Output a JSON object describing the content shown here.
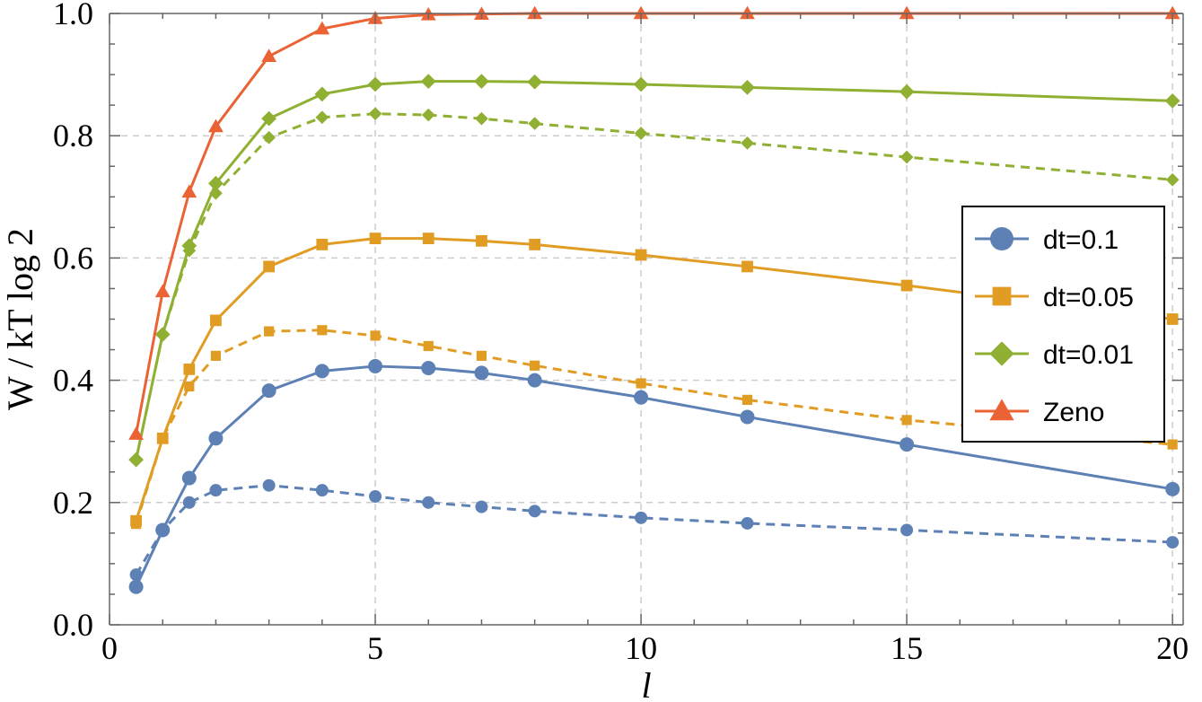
{
  "chart_data": {
    "type": "line",
    "xlabel": "l",
    "ylabel": "W / kT log 2",
    "xlim": [
      0,
      20.2
    ],
    "ylim": [
      0,
      1.0
    ],
    "xticks": [
      0,
      5,
      10,
      15,
      20
    ],
    "xtick_labels": [
      "0",
      "5",
      "10",
      "15",
      "20"
    ],
    "yticks": [
      0,
      0.2,
      0.4,
      0.6,
      0.8,
      1.0
    ],
    "ytick_labels": [
      "0.0",
      "0.2",
      "0.4",
      "0.6",
      "0.8",
      "1.0"
    ],
    "grid": true,
    "legend_position": "right",
    "series": [
      {
        "name": "dt=0.1",
        "color": "#5e81b5",
        "marker": "circle",
        "dashed": false,
        "x": [
          0.5,
          1,
          1.5,
          2,
          3,
          4,
          5,
          6,
          7,
          8,
          10,
          12,
          15,
          20
        ],
        "y": [
          0.062,
          0.155,
          0.24,
          0.305,
          0.383,
          0.415,
          0.423,
          0.42,
          0.412,
          0.4,
          0.372,
          0.34,
          0.295,
          0.222
        ]
      },
      {
        "name": "",
        "color": "#5e81b5",
        "marker": "circle",
        "dashed": true,
        "x": [
          0.5,
          1,
          1.5,
          2,
          3,
          4,
          5,
          6,
          7,
          8,
          10,
          12,
          15,
          20
        ],
        "y": [
          0.082,
          0.155,
          0.2,
          0.22,
          0.228,
          0.22,
          0.21,
          0.2,
          0.193,
          0.186,
          0.175,
          0.166,
          0.155,
          0.135
        ]
      },
      {
        "name": "dt=0.05",
        "color": "#e19c24",
        "marker": "square",
        "dashed": false,
        "x": [
          0.5,
          1,
          1.5,
          2,
          3,
          4,
          5,
          6,
          7,
          8,
          10,
          12,
          15,
          20
        ],
        "y": [
          0.17,
          0.305,
          0.418,
          0.498,
          0.586,
          0.622,
          0.632,
          0.632,
          0.628,
          0.622,
          0.605,
          0.586,
          0.555,
          0.5
        ]
      },
      {
        "name": "",
        "color": "#e19c24",
        "marker": "square",
        "dashed": true,
        "x": [
          0.5,
          1,
          1.5,
          2,
          3,
          4,
          5,
          6,
          7,
          8,
          10,
          12,
          15,
          20
        ],
        "y": [
          0.165,
          0.305,
          0.39,
          0.44,
          0.48,
          0.482,
          0.473,
          0.456,
          0.44,
          0.424,
          0.395,
          0.368,
          0.335,
          0.295
        ]
      },
      {
        "name": "dt=0.01",
        "color": "#8fb032",
        "marker": "diamond",
        "dashed": false,
        "x": [
          0.5,
          1,
          1.5,
          2,
          3,
          4,
          5,
          6,
          7,
          8,
          10,
          12,
          15,
          20
        ],
        "y": [
          0.27,
          0.475,
          0.62,
          0.722,
          0.828,
          0.868,
          0.884,
          0.889,
          0.889,
          0.888,
          0.884,
          0.879,
          0.872,
          0.857
        ]
      },
      {
        "name": "",
        "color": "#8fb032",
        "marker": "diamond",
        "dashed": true,
        "x": [
          0.5,
          1,
          1.5,
          2,
          3,
          4,
          5,
          6,
          7,
          8,
          10,
          12,
          15,
          20
        ],
        "y": [
          0.27,
          0.475,
          0.612,
          0.706,
          0.797,
          0.83,
          0.836,
          0.834,
          0.828,
          0.82,
          0.804,
          0.788,
          0.765,
          0.728
        ]
      },
      {
        "name": "Zeno",
        "color": "#eb6235",
        "marker": "triangle",
        "dashed": false,
        "x": [
          0.5,
          1,
          1.5,
          2,
          3,
          4,
          5,
          6,
          7,
          8,
          10,
          12,
          15,
          20
        ],
        "y": [
          0.312,
          0.545,
          0.708,
          0.815,
          0.93,
          0.975,
          0.992,
          0.998,
          0.999,
          1.0,
          1.0,
          1.0,
          1.0,
          1.0
        ]
      }
    ]
  }
}
